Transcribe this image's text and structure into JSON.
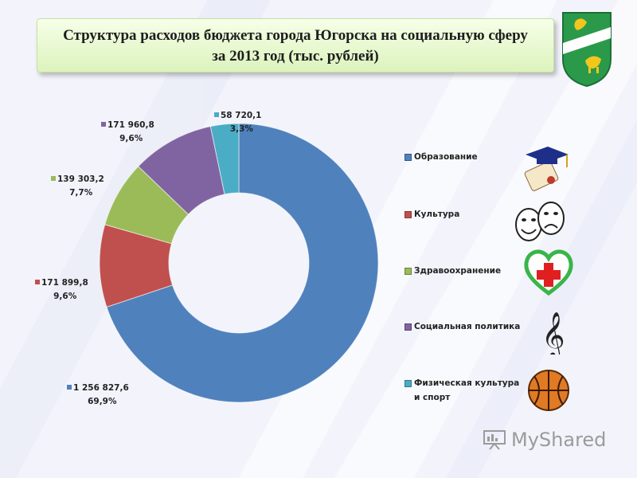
{
  "title": {
    "line1": "Структура расходов бюджета города Югорска на социальную сферу",
    "line2": "за 2013 год (тыс. рублей)"
  },
  "chart_data": {
    "type": "pie",
    "variant": "doughnut",
    "categories": [
      "Образование",
      "Культура",
      "Здравоохранение",
      "Социальная политика",
      "Физическая культура и спорт"
    ],
    "values": [
      1256827.6,
      171899.8,
      139303.2,
      171960.8,
      58720.1
    ],
    "value_labels": [
      "1 256 827,6",
      "171 899,8",
      "139 303,2",
      "171 960,8",
      "58 720,1"
    ],
    "percent_labels": [
      "69,9%",
      "9,6%",
      "7,7%",
      "9,6%",
      "3,3%"
    ],
    "colors": [
      "#4f81bd",
      "#c0504d",
      "#9bbb59",
      "#8064a2",
      "#4bacc6"
    ],
    "legend_position": "right"
  },
  "legend": {
    "items": [
      {
        "label": "Образование",
        "icon": "graduation-cap-diploma-icon"
      },
      {
        "label": "Культура",
        "icon": "theater-masks-icon"
      },
      {
        "label": "Здравоохранение",
        "icon": "heart-red-cross-icon"
      },
      {
        "label": "Социальная политика",
        "icon": "treble-clef-icon"
      },
      {
        "label": "Физическая культура и спорт",
        "icon": "basketball-icon"
      }
    ]
  },
  "watermark": {
    "text": "MyShared"
  }
}
